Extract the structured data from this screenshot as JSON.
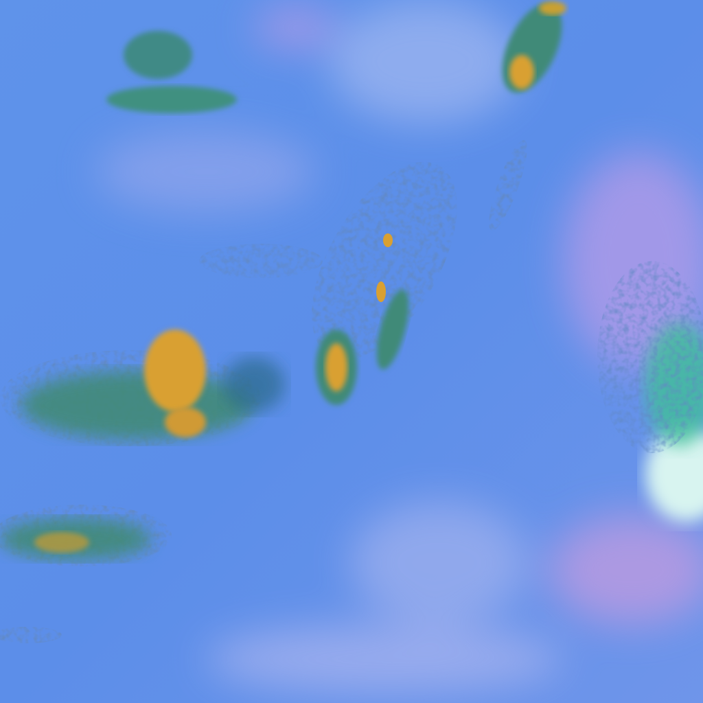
{
  "image": {
    "kind": "false-color satellite view",
    "colors": {
      "ocean": "#5b8ee8",
      "haze_pink": "#c9a3e8",
      "vegetation_green": "#3f8f7a",
      "highland_orange": "#d9a032",
      "cloud_white": "#e8fbf6",
      "shadow_dark": "#1f3f8a"
    }
  }
}
